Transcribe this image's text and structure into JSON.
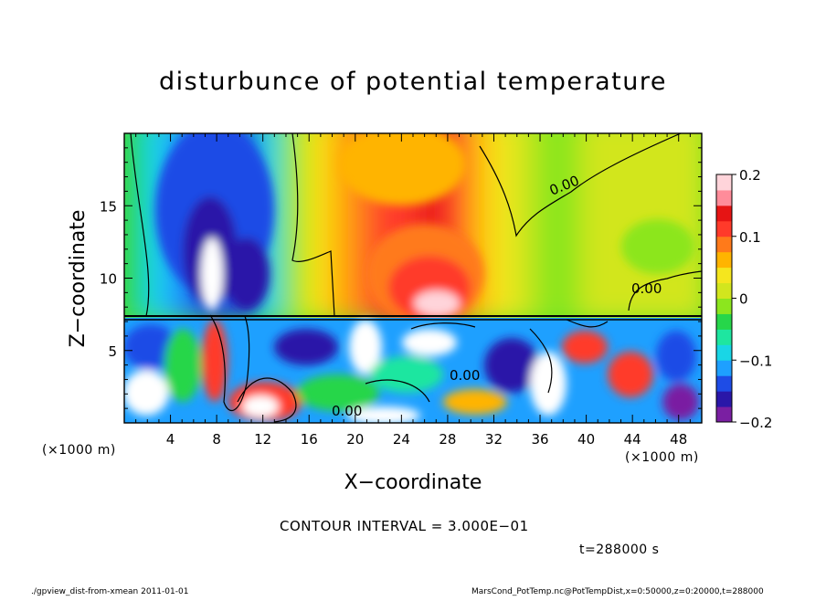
{
  "chart_data": {
    "type": "heatmap",
    "title": "disturbunce of potential temperature",
    "xlabel": "X−coordinate",
    "ylabel": "Z−coordinate",
    "x_unit_left": "(×1000 m)",
    "x_unit_right": "(×1000 m)",
    "xlim": [
      0,
      50
    ],
    "ylim": [
      0,
      20
    ],
    "x_ticks": [
      4,
      8,
      12,
      16,
      20,
      24,
      28,
      32,
      36,
      40,
      44,
      48
    ],
    "x_tick_labels": [
      "4",
      "8",
      "12",
      "16",
      "20",
      "24",
      "28",
      "32",
      "36",
      "40",
      "44",
      "48"
    ],
    "y_ticks": [
      5,
      10,
      15
    ],
    "y_tick_labels": [
      "5",
      "10",
      "15"
    ],
    "colorbar": {
      "range": [
        -0.2,
        0.2
      ],
      "ticks": [
        0.2,
        0.1,
        0,
        -0.1,
        -0.2
      ],
      "tick_labels": [
        "0.2",
        "0.1",
        "0",
        "−0.1",
        "−0.2"
      ],
      "colors": [
        "#7a1fa2",
        "#2a17a8",
        "#1e4ce6",
        "#1ea0ff",
        "#19d6e6",
        "#1ee6a0",
        "#26d64a",
        "#8ce61e",
        "#d2e61e",
        "#f5e61e",
        "#ffb400",
        "#ff7a1a",
        "#ff3a2a",
        "#e61414",
        "#ff8c9a",
        "#ffd4da"
      ]
    },
    "contour_labels": [
      "0.00",
      "0.00",
      "0.00",
      "0.00"
    ],
    "contour_interval": "CONTOUR INTERVAL = 3.000E−01",
    "time": "t=288000 s",
    "upper_field": [
      {
        "x": 0,
        "z": 20,
        "w": 2,
        "value": -0.04
      },
      {
        "x": 2,
        "z": 20,
        "w": 2,
        "value": -0.08
      },
      {
        "x": 4,
        "z": 20,
        "w": 2,
        "value": -0.12
      },
      {
        "x": 6,
        "z": 20,
        "w": 2,
        "value": -0.15
      },
      {
        "x": 8,
        "z": 20,
        "w": 2,
        "value": -0.15
      },
      {
        "x": 10,
        "z": 20,
        "w": 2,
        "value": -0.13
      },
      {
        "x": 12,
        "z": 20,
        "w": 2,
        "value": -0.08
      },
      {
        "x": 14,
        "z": 20,
        "w": 2,
        "value": -0.02
      },
      {
        "x": 16,
        "z": 20,
        "w": 2,
        "value": 0.03
      },
      {
        "x": 18,
        "z": 20,
        "w": 2,
        "value": 0.06
      },
      {
        "x": 20,
        "z": 20,
        "w": 2,
        "value": 0.09
      },
      {
        "x": 22,
        "z": 20,
        "w": 2,
        "value": 0.11
      },
      {
        "x": 24,
        "z": 20,
        "w": 2,
        "value": 0.12
      },
      {
        "x": 26,
        "z": 20,
        "w": 2,
        "value": 0.13
      },
      {
        "x": 28,
        "z": 20,
        "w": 2,
        "value": 0.11
      },
      {
        "x": 30,
        "z": 20,
        "w": 2,
        "value": 0.07
      },
      {
        "x": 32,
        "z": 20,
        "w": 2,
        "value": 0.03
      },
      {
        "x": 34,
        "z": 20,
        "w": 2,
        "value": 0.0
      },
      {
        "x": 36,
        "z": 20,
        "w": 2,
        "value": -0.01
      },
      {
        "x": 38,
        "z": 20,
        "w": 2,
        "value": -0.01
      },
      {
        "x": 40,
        "z": 20,
        "w": 2,
        "value": 0.0
      },
      {
        "x": 42,
        "z": 20,
        "w": 2,
        "value": 0.01
      },
      {
        "x": 44,
        "z": 20,
        "w": 2,
        "value": 0.0
      },
      {
        "x": 46,
        "z": 20,
        "w": 2,
        "value": 0.02
      },
      {
        "x": 48,
        "z": 20,
        "w": 2,
        "value": 0.02
      }
    ]
  },
  "footer": {
    "left": "./gpview_dist-from-xmean  2011-01-01",
    "right": "MarsCond_PotTemp.nc@PotTempDist,x=0:50000,z=0:20000,t=288000"
  }
}
